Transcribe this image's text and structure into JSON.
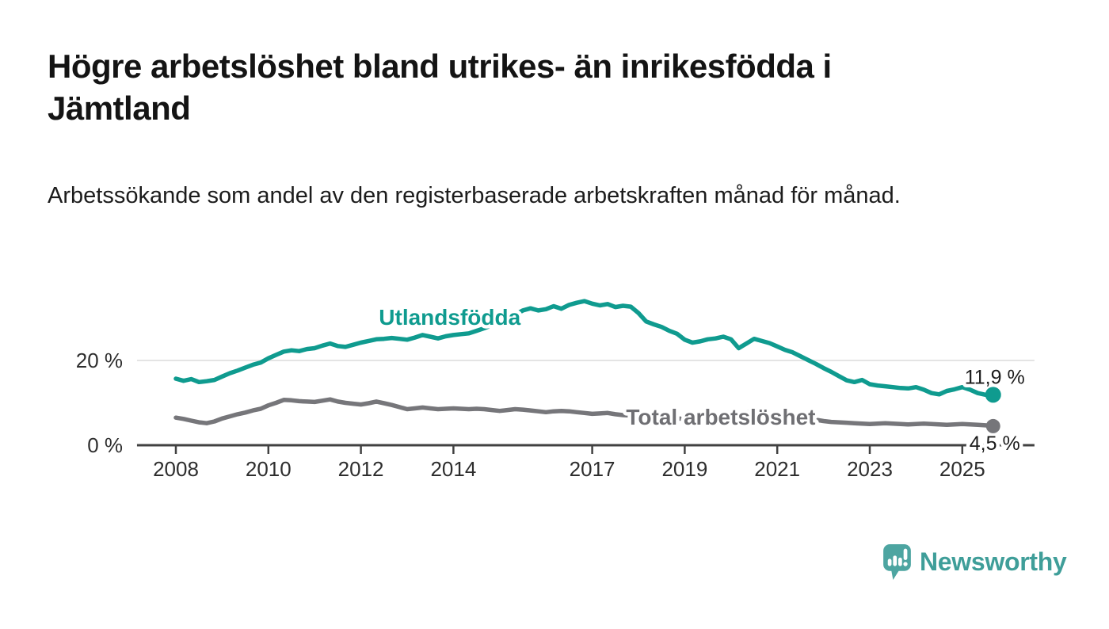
{
  "header": {
    "title": "Högre arbetslöshet bland utrikes- än inrikesfödda i Jämtland",
    "subtitle": "Arbetssökande som andel av den registerbaserade arbetskraften månad för månad."
  },
  "colors": {
    "teal_series": "#0f9b8f",
    "gray_series": "#76767a",
    "gray_label": "#6f6f73",
    "axis": "#414141",
    "grid": "#dcdcdc",
    "tick_text": "#2e2e2e",
    "value_text": "#1c1c1c",
    "logo": "#4da5a1",
    "brand_text": "#3f9e99"
  },
  "chart_data": {
    "type": "line",
    "title": "",
    "xlabel": "",
    "ylabel": "",
    "x_unit": "year (monthly data)",
    "y_unit": "percent",
    "x_start": 2008,
    "x_step": 0.166667,
    "xlim": [
      2007.16,
      2026.56
    ],
    "ylim": [
      0,
      35.5
    ],
    "grid": "y-only",
    "legend_position": "inline-labels",
    "y_ticks": [
      {
        "value": 0,
        "label": "0 %"
      },
      {
        "value": 20,
        "label": "20 %"
      }
    ],
    "x_ticks": [
      {
        "value": 2008,
        "label": "2008"
      },
      {
        "value": 2010,
        "label": "2010"
      },
      {
        "value": 2012,
        "label": "2012"
      },
      {
        "value": 2014,
        "label": "2014"
      },
      {
        "value": 2017,
        "label": "2017"
      },
      {
        "value": 2019,
        "label": "2019"
      },
      {
        "value": 2021,
        "label": "2021"
      },
      {
        "value": 2023,
        "label": "2023"
      },
      {
        "value": 2025,
        "label": "2025"
      }
    ],
    "series": [
      {
        "id": "utlandsfodda",
        "name": "Utlandsfödda",
        "color": "#0f9b8f",
        "label_color": "#0f9b8f",
        "label_pos": {
          "year": 2013.92,
          "value": 28.4
        },
        "end_label": "11,9 %",
        "end_value": 11.9,
        "end_label_offset_y": -14,
        "dot_radius": 10,
        "values": [
          15.7,
          15.2,
          15.6,
          14.9,
          15.1,
          15.4,
          16.2,
          17.0,
          17.6,
          18.3,
          19.0,
          19.5,
          20.5,
          21.3,
          22.1,
          22.4,
          22.2,
          22.7,
          22.9,
          23.5,
          24.0,
          23.4,
          23.2,
          23.7,
          24.2,
          24.6,
          25.0,
          25.1,
          25.3,
          25.1,
          24.9,
          25.4,
          26.0,
          25.6,
          25.2,
          25.7,
          26.0,
          26.2,
          26.4,
          27.0,
          27.6,
          28.3,
          29.0,
          29.8,
          30.8,
          31.8,
          32.3,
          31.8,
          32.1,
          32.8,
          32.2,
          33.1,
          33.6,
          34.0,
          33.4,
          33.0,
          33.3,
          32.6,
          32.9,
          32.7,
          31.2,
          29.2,
          28.5,
          27.9,
          27.0,
          26.3,
          24.9,
          24.2,
          24.5,
          25.0,
          25.2,
          25.6,
          25.0,
          22.9,
          24.0,
          25.1,
          24.6,
          24.1,
          23.3,
          22.5,
          21.9,
          21.0,
          20.1,
          19.2,
          18.2,
          17.3,
          16.3,
          15.3,
          14.9,
          15.4,
          14.4,
          14.1,
          13.9,
          13.7,
          13.5,
          13.4,
          13.7,
          13.1,
          12.3,
          12.0,
          12.8,
          13.2,
          13.7,
          13.1,
          12.3,
          11.9,
          11.9
        ]
      },
      {
        "id": "total",
        "name": "Total arbetslöshet",
        "color": "#76767a",
        "label_color": "#6f6f73",
        "label_pos": {
          "year": 2019.78,
          "value": 4.85
        },
        "end_label": "4,5 %",
        "end_value": 4.5,
        "end_label_offset_y": 30,
        "dot_radius": 9,
        "values": [
          6.5,
          6.2,
          5.8,
          5.4,
          5.2,
          5.6,
          6.3,
          6.8,
          7.3,
          7.7,
          8.2,
          8.6,
          9.4,
          10.0,
          10.7,
          10.6,
          10.4,
          10.3,
          10.2,
          10.5,
          10.8,
          10.3,
          10.0,
          9.8,
          9.6,
          9.9,
          10.3,
          9.9,
          9.5,
          9.0,
          8.5,
          8.7,
          8.9,
          8.7,
          8.5,
          8.6,
          8.7,
          8.6,
          8.5,
          8.6,
          8.5,
          8.3,
          8.1,
          8.3,
          8.5,
          8.4,
          8.2,
          8.0,
          7.8,
          8.0,
          8.1,
          8.0,
          7.8,
          7.6,
          7.4,
          7.5,
          7.6,
          7.3,
          7.1,
          7.0,
          6.8,
          6.7,
          6.6,
          6.5,
          6.4,
          6.3,
          6.2,
          6.1,
          6.1,
          6.0,
          6.0,
          6.1,
          6.2,
          7.3,
          7.8,
          7.9,
          7.7,
          7.5,
          7.2,
          6.9,
          6.7,
          6.5,
          6.2,
          6.0,
          5.7,
          5.5,
          5.4,
          5.3,
          5.2,
          5.1,
          5.0,
          5.1,
          5.2,
          5.1,
          5.0,
          4.9,
          5.0,
          5.1,
          5.0,
          4.9,
          4.8,
          4.9,
          5.0,
          4.9,
          4.8,
          4.7,
          4.5
        ]
      }
    ]
  },
  "footer": {
    "brand": "Newsworthy"
  }
}
